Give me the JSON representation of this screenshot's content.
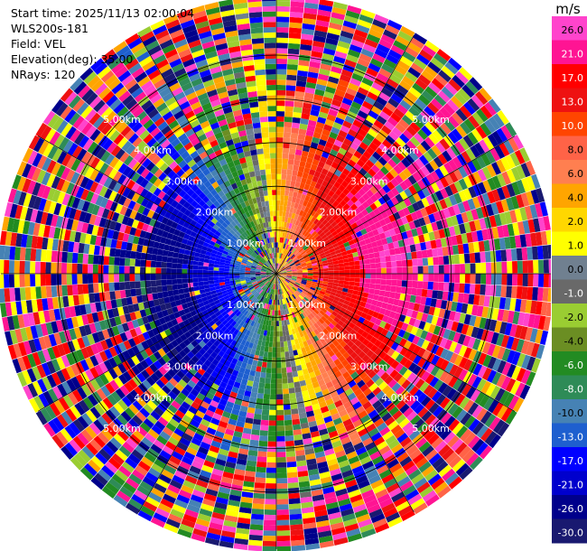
{
  "header": {
    "start_time": "Start time: 2025/11/13 02:00:04",
    "station": "WLS200s-181",
    "field": "Field: VEL",
    "elevation": "Elevation(deg): 35.00",
    "nrays": "NRays: 120"
  },
  "chart_data": {
    "type": "heatmap",
    "projection": "polar-ppi",
    "n_rays": 120,
    "field": "VEL",
    "range_rings": [
      {
        "range_km": 1,
        "label": "1.00km"
      },
      {
        "range_km": 2,
        "label": "2.00km"
      },
      {
        "range_km": 3,
        "label": "3.00km"
      },
      {
        "range_km": 4,
        "label": "4.00km"
      },
      {
        "range_km": 5,
        "label": "5.00km"
      }
    ],
    "max_range_km": 6.3,
    "wind_pattern": {
      "toward_azimuth_deg": 80,
      "peak_velocity_ms": 26,
      "clean_range_km": [
        0.9,
        3.4
      ]
    },
    "colorbar": {
      "unit": "m/s",
      "ticks": [
        "26.0",
        "21.0",
        "17.0",
        "13.0",
        "10.0",
        "8.0",
        "6.0",
        "4.0",
        "2.0",
        "1.0",
        "0.0",
        "-1.0",
        "-2.0",
        "-4.0",
        "-6.0",
        "-8.0",
        "-10.0",
        "-13.0",
        "-17.0",
        "-21.0",
        "-26.0",
        "-30.0"
      ],
      "bins": [
        {
          "lo": 26,
          "hi": 30,
          "color": "#ff44cc"
        },
        {
          "lo": 21,
          "hi": 26,
          "color": "#ff1493"
        },
        {
          "lo": 17,
          "hi": 21,
          "color": "#ff0000"
        },
        {
          "lo": 13,
          "hi": 17,
          "color": "#ee1111"
        },
        {
          "lo": 10,
          "hi": 13,
          "color": "#ff4500"
        },
        {
          "lo": 8,
          "hi": 10,
          "color": "#ff6347"
        },
        {
          "lo": 6,
          "hi": 8,
          "color": "#ff7f50"
        },
        {
          "lo": 4,
          "hi": 6,
          "color": "#ffa500"
        },
        {
          "lo": 2,
          "hi": 4,
          "color": "#ffd700"
        },
        {
          "lo": 1,
          "hi": 2,
          "color": "#ffff00"
        },
        {
          "lo": 0,
          "hi": 1,
          "color": "#708090"
        },
        {
          "lo": -1,
          "hi": 0,
          "color": "#696969"
        },
        {
          "lo": -2,
          "hi": -1,
          "color": "#9acd32"
        },
        {
          "lo": -4,
          "hi": -2,
          "color": "#6b8e23"
        },
        {
          "lo": -6,
          "hi": -4,
          "color": "#228b22"
        },
        {
          "lo": -8,
          "hi": -6,
          "color": "#2e8b57"
        },
        {
          "lo": -10,
          "hi": -8,
          "color": "#4682b4"
        },
        {
          "lo": -13,
          "hi": -10,
          "color": "#1e5fcf"
        },
        {
          "lo": -17,
          "hi": -13,
          "color": "#0000ff"
        },
        {
          "lo": -21,
          "hi": -17,
          "color": "#0000cd"
        },
        {
          "lo": -26,
          "hi": -21,
          "color": "#00008b"
        },
        {
          "lo": -30,
          "hi": -26,
          "color": "#191970"
        }
      ]
    }
  }
}
